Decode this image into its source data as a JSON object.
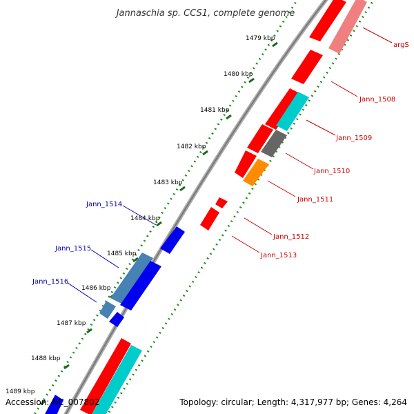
{
  "title": "Jannaschia sp. CCS1, complete genome",
  "footer": {
    "accession": "Accession: NC_007802",
    "topology": "Topology: circular; Length: 4,317,977 bp; Genes: 4,264"
  },
  "ticks": [
    "1479 kbp",
    "1480 kbp",
    "1481 kbp",
    "1482 kbp",
    "1483 kbp",
    "1484 kbp",
    "1485 kbp",
    "1486 kbp",
    "1487 kbp",
    "1488 kbp",
    "1489 kbp"
  ],
  "genes_right": [
    "argS",
    "Jann_1508",
    "Jann_1509",
    "Jann_1510",
    "Jann_1511",
    "Jann_1512",
    "Jann_1513"
  ],
  "genes_left": [
    "Jann_1514",
    "Jann_1515",
    "Jann_1516"
  ],
  "colors": {
    "red": "#ff0000",
    "pink": "#f08080",
    "cyan": "#00cccc",
    "gray": "#666666",
    "orange": "#ff8c00",
    "blue": "#0000ee",
    "steelblue": "#4682b4",
    "backbone": "#999999",
    "dots": "#228b22"
  }
}
